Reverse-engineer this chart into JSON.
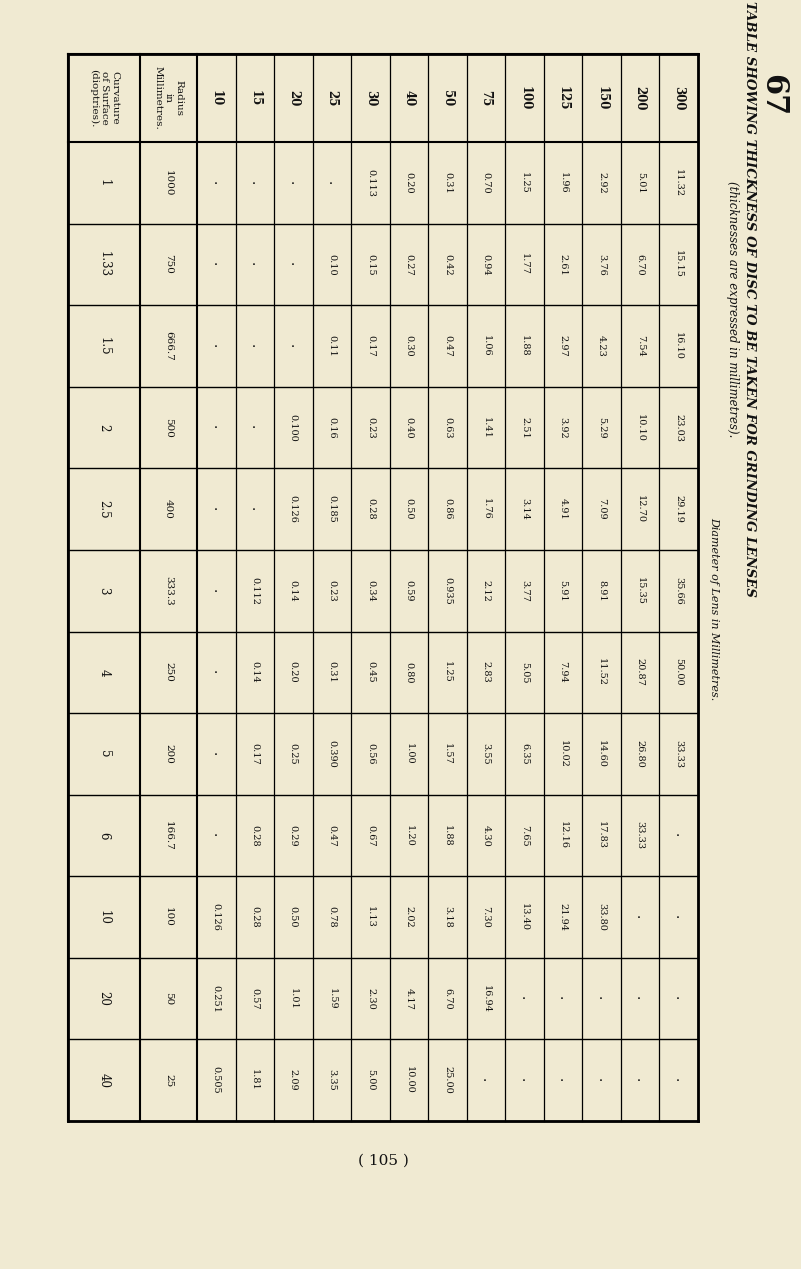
{
  "page_number": "67",
  "title_line1": "TABLE SHOWING THICKNESS OF DISC TO BE TAKEN FOR GRINDING LENSES",
  "title_line2": "(thicknesses are expressed in millimetres).",
  "diam_label": "Diameter of Lens in Millimetres.",
  "footer": "( 105 )",
  "bg_color": "#f0ead2",
  "text_color": "#111111",
  "row_labels": [
    "1",
    "1.33",
    "1.5",
    "2",
    "2.5",
    "3",
    "4",
    "5",
    "6",
    "10",
    "20",
    "40"
  ],
  "radius_vals": [
    "1000",
    "750",
    "666.7",
    "500",
    "400",
    "333.3",
    "250",
    "200",
    "166.7",
    "100",
    "50",
    "25"
  ],
  "diameter_cols": [
    "10",
    "15",
    "20",
    "25",
    "30",
    "40",
    "50",
    "75",
    "100",
    "125",
    "150",
    "200",
    "300"
  ],
  "table_data": [
    [
      ".",
      ".",
      ".",
      ".",
      "0.113",
      "0.20",
      "0.31",
      "0.70",
      "1.25",
      "1.96",
      "2.92",
      "5.01",
      "11.32"
    ],
    [
      ".",
      ".",
      ".",
      "0.10",
      "0.15",
      "0.27",
      "0.42",
      "0.94",
      "1.77",
      "2.61",
      "3.76",
      "6.70",
      "15.15"
    ],
    [
      ".",
      ".",
      ".",
      "0.11",
      "0.17",
      "0.30",
      "0.47",
      "1.06",
      "1.88",
      "2.97",
      "4.23",
      "7.54",
      "16.10"
    ],
    [
      ".",
      ".",
      "0.100",
      "0.16",
      "0.23",
      "0.40",
      "0.63",
      "1.41",
      "2.51",
      "3.92",
      "5.29",
      "10.10",
      "23.03"
    ],
    [
      ".",
      ".",
      "0.126",
      "0.185",
      "0.28",
      "0.50",
      "0.86",
      "1.76",
      "3.14",
      "4.91",
      "7.09",
      "12.70",
      "29.19"
    ],
    [
      ".",
      "0.112",
      "0.14",
      "0.23",
      "0.34",
      "0.59",
      "0.935",
      "2.12",
      "3.77",
      "5.91",
      "8.91",
      "15.35",
      "35.66"
    ],
    [
      ".",
      "0.14",
      "0.20",
      "0.31",
      "0.45",
      "0.80",
      "1.25",
      "2.83",
      "5.05",
      "7.94",
      "11.52",
      "20.87",
      "50.00"
    ],
    [
      ".",
      "0.17",
      "0.25",
      "0.390",
      "0.56",
      "1.00",
      "1.57",
      "3.55",
      "6.35",
      "10.02",
      "14.60",
      "26.80",
      "33.33"
    ],
    [
      ".",
      "0.28",
      "0.29",
      "0.47",
      "0.67",
      "1.20",
      "1.88",
      "4.30",
      "7.65",
      "12.16",
      "17.83",
      "33.33",
      "."
    ],
    [
      "0.126",
      "0.28",
      "0.50",
      "0.78",
      "1.13",
      "2.02",
      "3.18",
      "7.30",
      "13.40",
      "21.94",
      "33.80",
      ".",
      "."
    ],
    [
      "0.251",
      "0.57",
      "1.01",
      "1.59",
      "2.30",
      "4.17",
      "6.70",
      "16.94",
      ".",
      ".",
      ".",
      ".",
      "."
    ],
    [
      "0.505",
      "1.81",
      "2.09",
      "3.35",
      "5.00",
      "10.00",
      "25.00",
      ".",
      ".",
      ".",
      ".",
      ".",
      "."
    ]
  ]
}
